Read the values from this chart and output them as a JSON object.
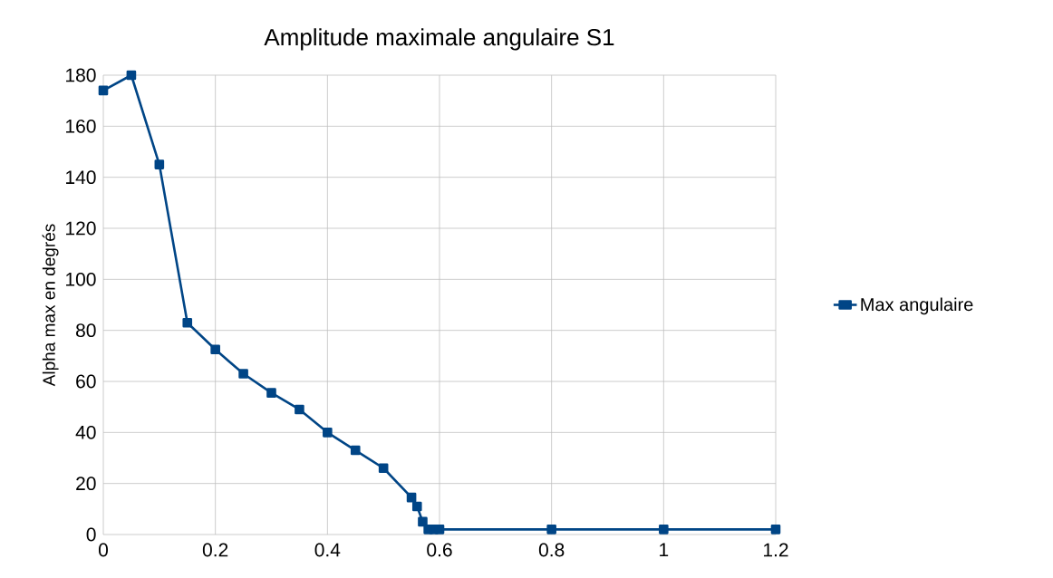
{
  "chart_data": {
    "type": "line",
    "title": "Amplitude maximale angulaire  S1",
    "ylabel": "Alpha max en degrés",
    "x": [
      0,
      0.05,
      0.1,
      0.15,
      0.2,
      0.25,
      0.3,
      0.35,
      0.4,
      0.45,
      0.5,
      0.55,
      0.56,
      0.57,
      0.58,
      0.59,
      0.6,
      0.8,
      1,
      1.2
    ],
    "series": [
      {
        "name": "Max angulaire",
        "color": "#004586",
        "values": [
          174,
          180,
          145,
          83,
          72.5,
          63,
          55.5,
          49,
          40,
          33,
          26,
          14.5,
          11,
          5,
          2,
          2,
          2,
          2,
          2,
          2
        ]
      }
    ],
    "xlim": [
      0,
      1.2
    ],
    "xticks": [
      0,
      0.2,
      0.4,
      0.6,
      0.8,
      1,
      1.2
    ],
    "ylim": [
      0,
      180
    ],
    "yticks": [
      0,
      20,
      40,
      60,
      80,
      100,
      120,
      140,
      160,
      180
    ],
    "grid": true,
    "legend": "right",
    "marker": "square",
    "line_style": "solid"
  }
}
